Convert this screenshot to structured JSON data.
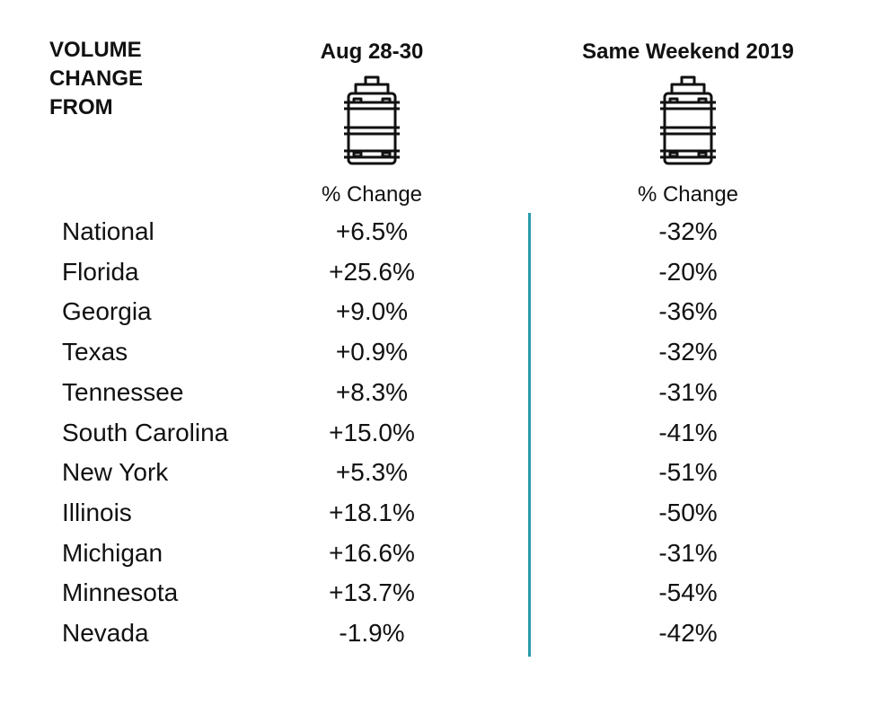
{
  "chart_data": {
    "type": "table",
    "corner_label": [
      "VOLUME",
      "CHANGE",
      "FROM"
    ],
    "columns": [
      {
        "header": "Aug 28-30",
        "icon": "keg-icon",
        "subheader": "% Change"
      },
      {
        "header": "Same Weekend 2019",
        "icon": "keg-icon",
        "subheader": "% Change"
      }
    ],
    "rows": [
      {
        "label": "National",
        "values": [
          "+6.5%",
          "-32%"
        ]
      },
      {
        "label": "Florida",
        "values": [
          "+25.6%",
          "-20%"
        ]
      },
      {
        "label": "Georgia",
        "values": [
          "+9.0%",
          "-36%"
        ]
      },
      {
        "label": "Texas",
        "values": [
          "+0.9%",
          "-32%"
        ]
      },
      {
        "label": "Tennessee",
        "values": [
          "+8.3%",
          "-31%"
        ]
      },
      {
        "label": "South Carolina",
        "values": [
          "+15.0%",
          "-41%"
        ]
      },
      {
        "label": "New York",
        "values": [
          "+5.3%",
          "-51%"
        ]
      },
      {
        "label": "Illinois",
        "values": [
          "+18.1%",
          "-50%"
        ]
      },
      {
        "label": "Michigan",
        "values": [
          "+16.6%",
          "-31%"
        ]
      },
      {
        "label": "Minnesota",
        "values": [
          "+13.7%",
          "-54%"
        ]
      },
      {
        "label": "Nevada",
        "values": [
          "-1.9%",
          "-42%"
        ]
      }
    ]
  },
  "colors": {
    "divider": "#2a9bab",
    "text": "#111111"
  }
}
